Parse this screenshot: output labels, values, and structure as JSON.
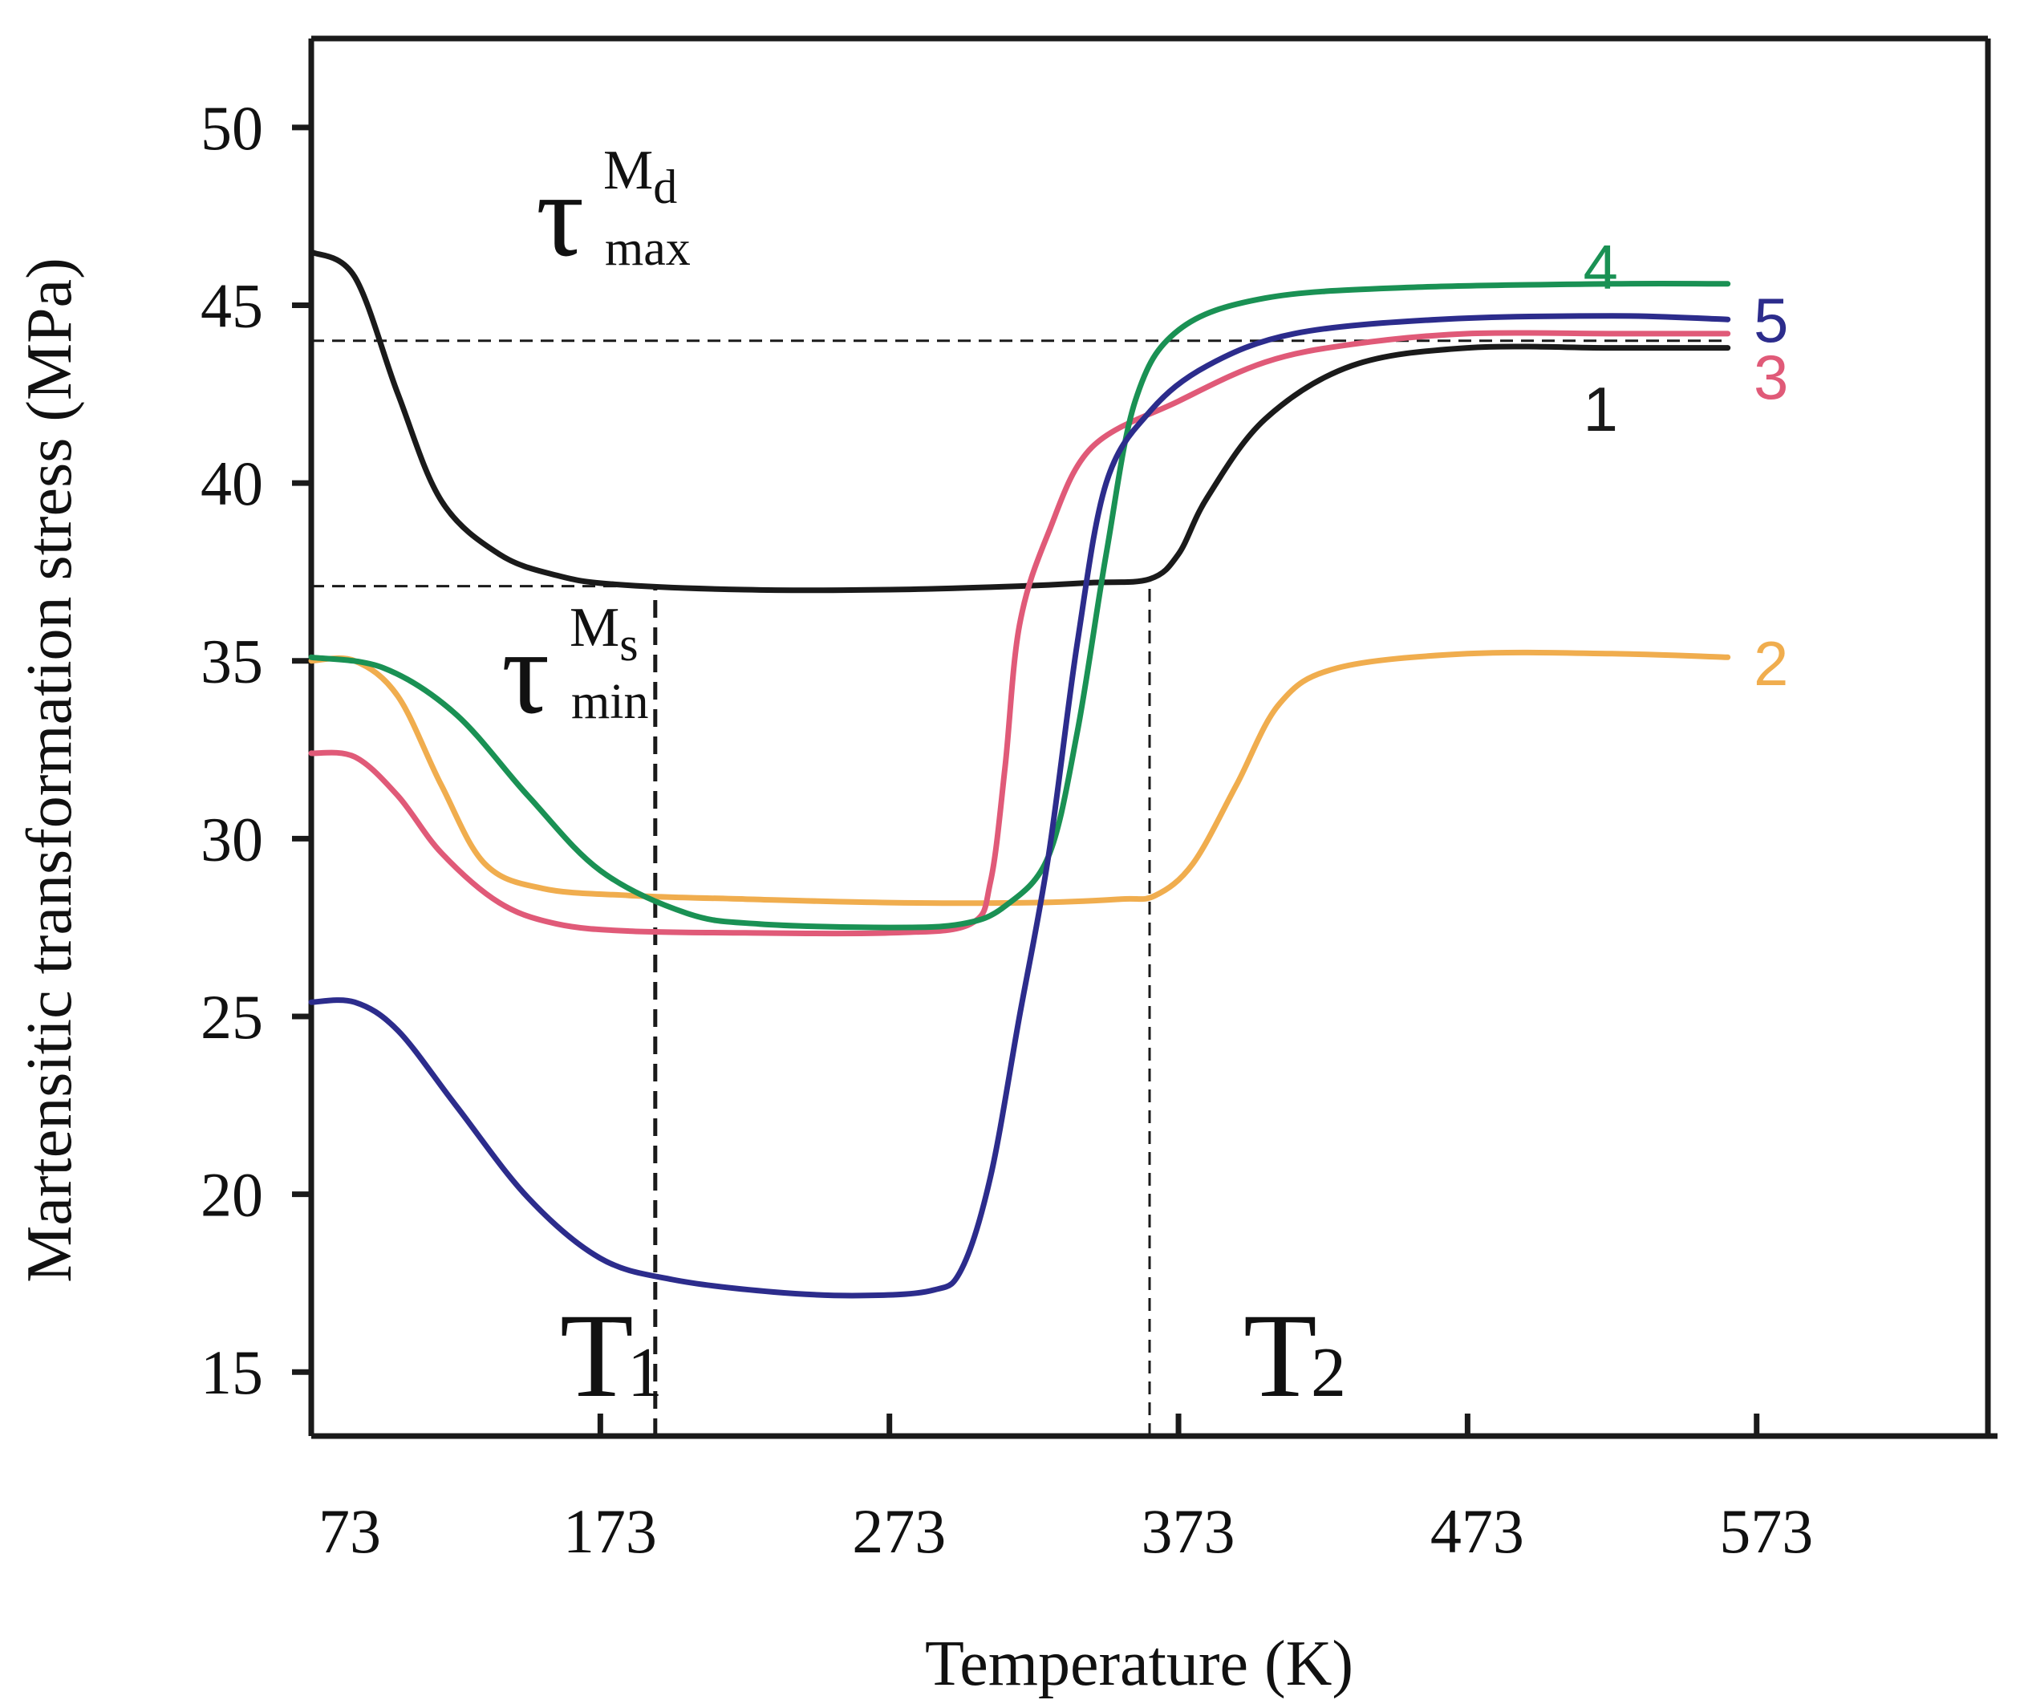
{
  "chart_data": {
    "type": "line",
    "title": "",
    "xlabel": "Temperature (K)",
    "ylabel": "Martensitic transformation stress (MPa)",
    "xlim": [
      73,
      653
    ],
    "ylim": [
      13.2,
      52.5
    ],
    "xticks": [
      73,
      173,
      273,
      373,
      473,
      573
    ],
    "yticks": [
      15,
      20,
      25,
      30,
      35,
      40,
      45,
      50
    ],
    "grid": false,
    "legend": "inline labels at right end of curves",
    "series": [
      {
        "name": "1",
        "label": "1",
        "color": "#1a1a1a",
        "points": [
          [
            73,
            46.5
          ],
          [
            88,
            45.8
          ],
          [
            103,
            42.5
          ],
          [
            118,
            39.5
          ],
          [
            138,
            38.0
          ],
          [
            158,
            37.4
          ],
          [
            178,
            37.15
          ],
          [
            223,
            37.0
          ],
          [
            273,
            37.0
          ],
          [
            318,
            37.1
          ],
          [
            343,
            37.2
          ],
          [
            363,
            37.3
          ],
          [
            373,
            38.0
          ],
          [
            383,
            39.6
          ],
          [
            403,
            41.8
          ],
          [
            433,
            43.3
          ],
          [
            473,
            43.8
          ],
          [
            523,
            43.8
          ],
          [
            563,
            43.8
          ]
        ],
        "label_pos": [
          519,
          42.1
        ]
      },
      {
        "name": "2",
        "label": "2",
        "color": "#f0ad4e",
        "points": [
          [
            73,
            35.0
          ],
          [
            88,
            35.0
          ],
          [
            103,
            34.0
          ],
          [
            118,
            31.5
          ],
          [
            133,
            29.3
          ],
          [
            153,
            28.6
          ],
          [
            183,
            28.4
          ],
          [
            223,
            28.3
          ],
          [
            273,
            28.2
          ],
          [
            323,
            28.2
          ],
          [
            353,
            28.3
          ],
          [
            365,
            28.4
          ],
          [
            378,
            29.3
          ],
          [
            393,
            31.5
          ],
          [
            408,
            33.8
          ],
          [
            428,
            34.8
          ],
          [
            473,
            35.2
          ],
          [
            523,
            35.2
          ],
          [
            563,
            35.1
          ]
        ],
        "label_pos": [
          578,
          34.95
        ]
      },
      {
        "name": "3",
        "label": "3",
        "color": "#e05a78",
        "points": [
          [
            73,
            32.4
          ],
          [
            88,
            32.3
          ],
          [
            103,
            31.2
          ],
          [
            118,
            29.6
          ],
          [
            138,
            28.2
          ],
          [
            158,
            27.6
          ],
          [
            183,
            27.4
          ],
          [
            223,
            27.35
          ],
          [
            273,
            27.35
          ],
          [
            301,
            27.6
          ],
          [
            308,
            28.8
          ],
          [
            313,
            32.0
          ],
          [
            318,
            36.0
          ],
          [
            328,
            38.6
          ],
          [
            343,
            41.0
          ],
          [
            373,
            42.3
          ],
          [
            403,
            43.4
          ],
          [
            433,
            43.9
          ],
          [
            473,
            44.2
          ],
          [
            523,
            44.2
          ],
          [
            563,
            44.2
          ]
        ],
        "label_pos": [
          578,
          43.0
        ]
      },
      {
        "name": "4",
        "label": "4",
        "color": "#1a9154",
        "points": [
          [
            73,
            35.1
          ],
          [
            98,
            34.8
          ],
          [
            123,
            33.5
          ],
          [
            148,
            31.2
          ],
          [
            173,
            29.1
          ],
          [
            203,
            27.9
          ],
          [
            228,
            27.6
          ],
          [
            273,
            27.5
          ],
          [
            298,
            27.6
          ],
          [
            313,
            28.1
          ],
          [
            328,
            29.5
          ],
          [
            338,
            33.0
          ],
          [
            348,
            38.0
          ],
          [
            358,
            42.3
          ],
          [
            373,
            44.3
          ],
          [
            403,
            45.2
          ],
          [
            453,
            45.5
          ],
          [
            523,
            45.6
          ],
          [
            563,
            45.6
          ]
        ],
        "label_pos": [
          519,
          46.1
        ]
      },
      {
        "name": "5",
        "label": "5",
        "color": "#2c2c8c",
        "points": [
          [
            73,
            25.4
          ],
          [
            88,
            25.4
          ],
          [
            103,
            24.6
          ],
          [
            123,
            22.5
          ],
          [
            148,
            19.9
          ],
          [
            173,
            18.2
          ],
          [
            198,
            17.6
          ],
          [
            233,
            17.25
          ],
          [
            263,
            17.15
          ],
          [
            288,
            17.3
          ],
          [
            298,
            17.9
          ],
          [
            308,
            20.5
          ],
          [
            318,
            25.0
          ],
          [
            328,
            29.5
          ],
          [
            338,
            35.5
          ],
          [
            348,
            40.0
          ],
          [
            363,
            42.0
          ],
          [
            383,
            43.3
          ],
          [
            413,
            44.2
          ],
          [
            463,
            44.6
          ],
          [
            523,
            44.7
          ],
          [
            563,
            44.6
          ]
        ],
        "label_pos": [
          578,
          44.6
        ]
      }
    ],
    "reference_lines": {
      "horizontal": [
        {
          "y": 44.0,
          "x_from": 73,
          "x_to": 563
        },
        {
          "y": 37.1,
          "x_from": 73,
          "x_to": 193
        }
      ],
      "vertical": [
        {
          "x": 192,
          "y_from": 13.2,
          "y_to": 37.1
        },
        {
          "x": 363,
          "y_from": 13.2,
          "y_to": 37.3
        }
      ]
    },
    "annotations": {
      "tau_max": {
        "symbol": "τ",
        "sup": "M",
        "sup_sub": "d",
        "sub": "max",
        "at": [
          152,
          46.0
        ]
      },
      "tau_min": {
        "symbol": "τ",
        "sup": "M",
        "sup_sub": "s",
        "sub": "min",
        "at": [
          140,
          33.0
        ]
      },
      "T1": {
        "main": "T",
        "sub": "1",
        "at": [
          160,
          15.0
        ]
      },
      "T2": {
        "main": "T",
        "sub": "2",
        "at": [
          395,
          15.0
        ]
      }
    }
  }
}
